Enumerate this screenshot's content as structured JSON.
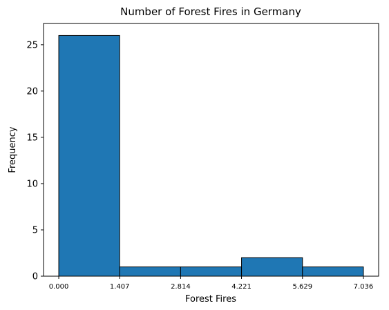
{
  "chart_data": {
    "type": "bar",
    "title": "Number of Forest Fires in Germany",
    "xlabel": "Forest Fires",
    "ylabel": "Frequency",
    "bin_edges": [
      0.0,
      1.407,
      2.814,
      4.221,
      5.629,
      7.036
    ],
    "x_tick_labels": [
      "0.000",
      "1.407",
      "2.814",
      "4.221",
      "5.629",
      "7.036"
    ],
    "values": [
      26,
      1,
      1,
      2,
      1
    ],
    "y_ticks": [
      0,
      5,
      10,
      15,
      20,
      25
    ],
    "ylim": [
      0,
      27.3
    ],
    "xlim": [
      -0.3518,
      7.3878
    ],
    "bar_color": "#1f77b4",
    "edge_color": "#000000",
    "grid": false
  }
}
